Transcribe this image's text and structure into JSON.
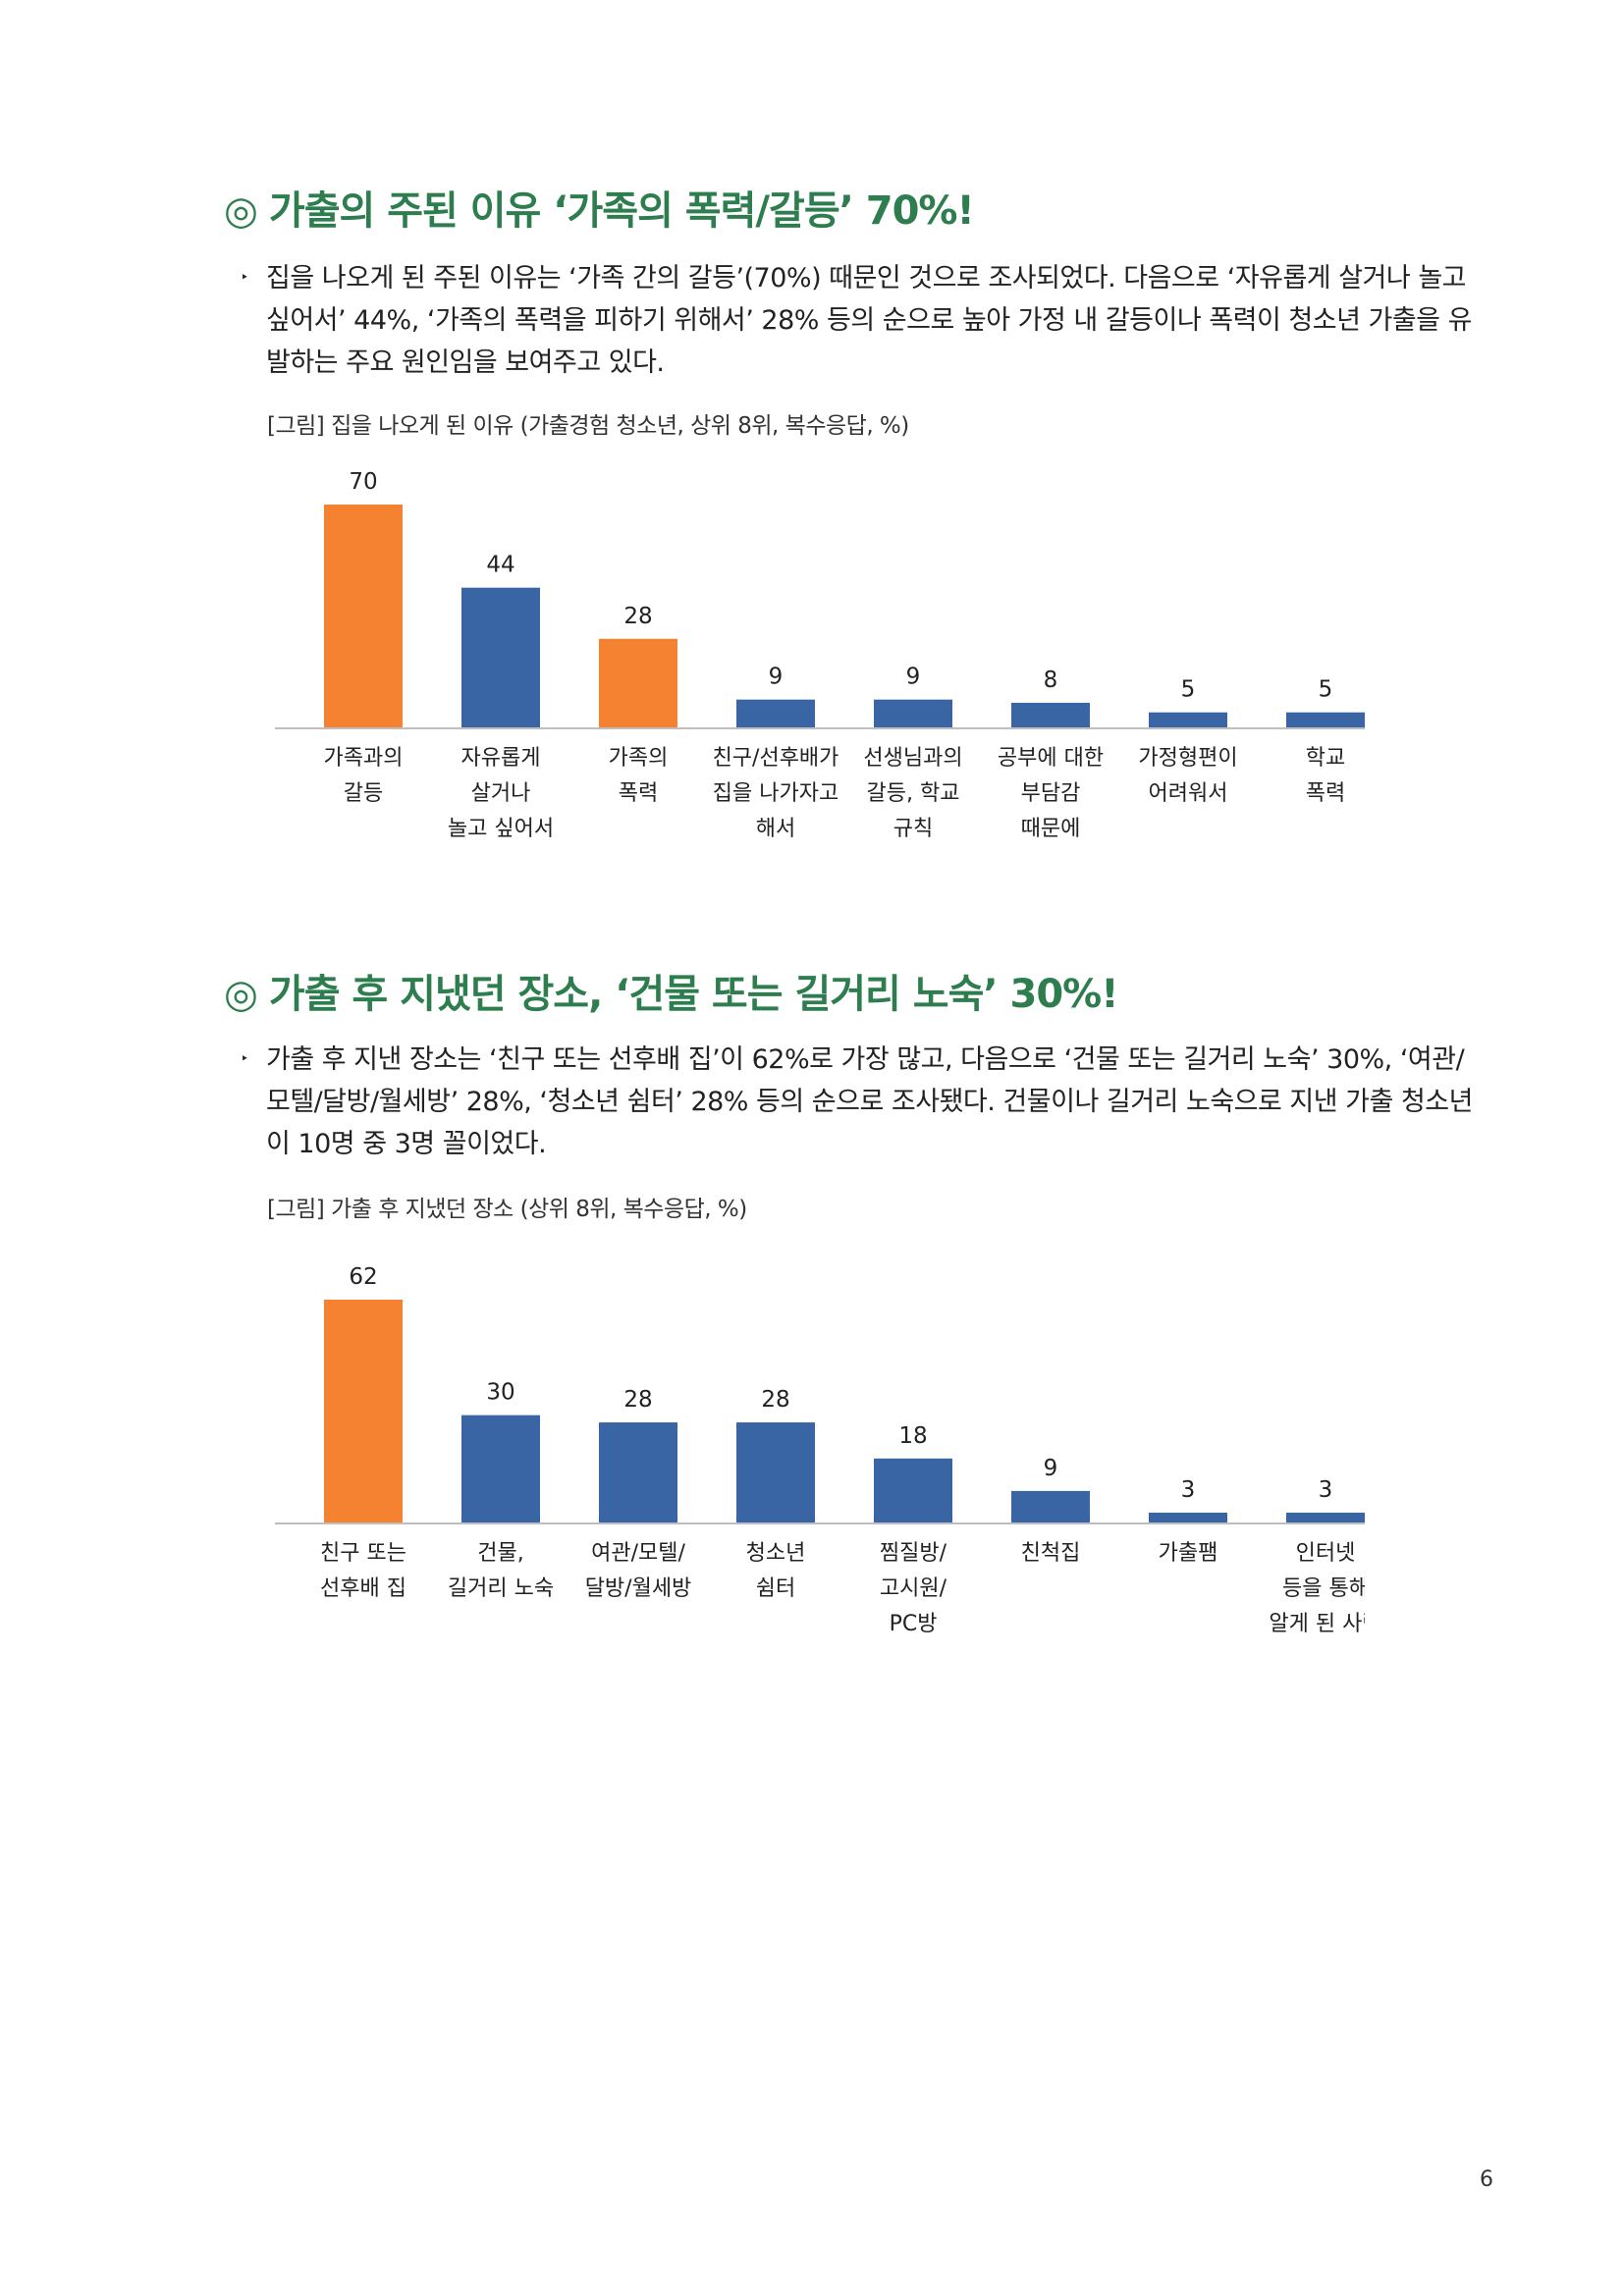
{
  "section1": {
    "mark": "◎",
    "title": "가출의 주된 이유 ‘가족의 폭력/갈등’ 70%!",
    "bullet": "‣",
    "paragraph": "집을 나오게 된 주된 이유는 ‘가족 간의 갈등’(70%) 때문인 것으로 조사되었다. 다음으로 ‘자유롭게 살거나 놀고 싶어서’ 44%, ‘가족의 폭력을 피하기 위해서’ 28% 등의 순으로 높아 가정 내 갈등이나 폭력이 청소년 가출을 유발하는 주요 원인임을 보여주고 있다.",
    "caption": "[그림] 집을 나오게 된 이유 (가출경험 청소년, 상위 8위, 복수응답, %)"
  },
  "section2": {
    "mark": "◎",
    "title": "가출 후 지냈던 장소, ‘건물 또는 길거리 노숙’ 30%!",
    "bullet": "‣",
    "paragraph": "가출 후 지낸 장소는 ‘친구 또는 선후배 집’이 62%로 가장 많고, 다음으로 ‘건물 또는 길거리 노숙’ 30%, ‘여관/모텔/달방/월세방’ 28%, ‘청소년 쉼터’ 28% 등의 순으로 조사됐다. 건물이나 길거리 노숙으로 지낸 가출 청소년이 10명 중 3명 꼴이었다.",
    "caption": "[그림] 가출 후 지냈던 장소 (상위 8위, 복수응답, %)"
  },
  "page_number": "6",
  "colors": {
    "heading": "#2e7d4f",
    "highlight": "#f58231",
    "bar": "#3a65a5",
    "axis": "#bfbfbf"
  },
  "chart_data": [
    {
      "type": "bar",
      "title": "",
      "xlabel": "",
      "ylabel": "",
      "ylim": [
        0,
        70
      ],
      "grid": false,
      "categories": [
        [
          "가족과의",
          "갈등"
        ],
        [
          "자유롭게",
          "살거나",
          "놀고 싶어서"
        ],
        [
          "가족의",
          "폭력"
        ],
        [
          "친구/선후배가",
          "집을 나가자고",
          "해서"
        ],
        [
          "선생님과의",
          "갈등, 학교",
          "규칙"
        ],
        [
          "공부에 대한",
          "부담감",
          "때문에"
        ],
        [
          "가정형편이",
          "어려워서"
        ],
        [
          "학교",
          "폭력"
        ]
      ],
      "values": [
        70,
        44,
        28,
        9,
        9,
        8,
        5,
        5
      ],
      "value_labels": [
        "70",
        "44",
        "28",
        "9",
        "9",
        "8",
        "5",
        "5"
      ],
      "highlight": [
        true,
        false,
        true,
        false,
        false,
        false,
        false,
        false
      ]
    },
    {
      "type": "bar",
      "title": "",
      "xlabel": "",
      "ylabel": "",
      "ylim": [
        0,
        62
      ],
      "grid": false,
      "categories": [
        [
          "친구 또는",
          "선후배 집"
        ],
        [
          "건물,",
          "길거리 노숙"
        ],
        [
          "여관/모텔/",
          "달방/월세방"
        ],
        [
          "청소년",
          "쉼터"
        ],
        [
          "찜질방/",
          "고시원/",
          "PC방"
        ],
        [
          "친척집"
        ],
        [
          "가출팸"
        ],
        [
          "인터넷",
          "등을 통해",
          "알게 된 사람"
        ]
      ],
      "values": [
        62,
        30,
        28,
        28,
        18,
        9,
        3,
        3
      ],
      "value_labels": [
        "62",
        "30",
        "28",
        "28",
        "18",
        "9",
        "3",
        "3"
      ],
      "highlight": [
        true,
        false,
        false,
        false,
        false,
        false,
        false,
        false
      ]
    }
  ]
}
